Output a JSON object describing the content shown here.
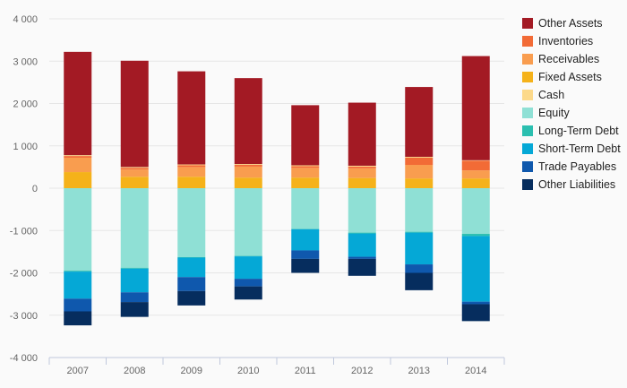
{
  "chart_data": {
    "type": "bar",
    "stacked": true,
    "categories": [
      "2007",
      "2008",
      "2009",
      "2010",
      "2011",
      "2012",
      "2013",
      "2014"
    ],
    "ylim": [
      -4000,
      4000
    ],
    "yticks": [
      4000,
      3000,
      2000,
      1000,
      0,
      -1000,
      -2000,
      -3000,
      -4000
    ],
    "ytick_labels": [
      "4 000",
      "3 000",
      "2 000",
      "1 000",
      "0",
      "-1 000",
      "-2 000",
      "-3 000",
      "-4 000"
    ],
    "grid": true,
    "legend_position": "right",
    "positive_series": [
      {
        "name": "Fixed Assets",
        "color": "#f5b21a",
        "values": [
          380,
          270,
          270,
          250,
          250,
          240,
          230,
          230
        ]
      },
      {
        "name": "Receivables",
        "color": "#f99d4f",
        "values": [
          340,
          170,
          230,
          260,
          230,
          230,
          320,
          190
        ]
      },
      {
        "name": "Inventories",
        "color": "#f26b36",
        "values": [
          40,
          40,
          40,
          40,
          40,
          40,
          170,
          230
        ]
      },
      {
        "name": "Cash",
        "color": "#fcd98a",
        "values": [
          20,
          20,
          20,
          20,
          20,
          20,
          20,
          10
        ]
      },
      {
        "name": "Other Assets",
        "color": "#a31a24",
        "values": [
          2440,
          2510,
          2200,
          2030,
          1420,
          1490,
          1650,
          2460
        ]
      }
    ],
    "negative_series": [
      {
        "name": "Equity",
        "color": "#8fe0d5",
        "values": [
          -1950,
          -1880,
          -1630,
          -1600,
          -960,
          -1050,
          -1030,
          -1080
        ]
      },
      {
        "name": "Long-Term Debt",
        "color": "#2bbfb0",
        "values": [
          -20,
          -20,
          -10,
          -10,
          -10,
          -20,
          -20,
          -50
        ]
      },
      {
        "name": "Short-Term Debt",
        "color": "#05a8d6",
        "values": [
          -640,
          -560,
          -460,
          -530,
          -500,
          -550,
          -750,
          -1550
        ]
      },
      {
        "name": "Trade Payables",
        "color": "#0f58ad",
        "values": [
          -300,
          -230,
          -330,
          -180,
          -200,
          -50,
          -200,
          -60
        ]
      },
      {
        "name": "Other Liabilities",
        "color": "#062d5e",
        "values": [
          -330,
          -350,
          -340,
          -310,
          -330,
          -400,
          -410,
          -400
        ]
      }
    ],
    "legend": [
      {
        "name": "Other Assets",
        "color": "#a31a24"
      },
      {
        "name": "Inventories",
        "color": "#f26b36"
      },
      {
        "name": "Receivables",
        "color": "#f99d4f"
      },
      {
        "name": "Fixed Assets",
        "color": "#f5b21a"
      },
      {
        "name": "Cash",
        "color": "#fcd98a"
      },
      {
        "name": "Equity",
        "color": "#8fe0d5"
      },
      {
        "name": "Long-Term Debt",
        "color": "#2bbfb0"
      },
      {
        "name": "Short-Term Debt",
        "color": "#05a8d6"
      },
      {
        "name": "Trade Payables",
        "color": "#0f58ad"
      },
      {
        "name": "Other Liabilities",
        "color": "#062d5e"
      }
    ]
  }
}
